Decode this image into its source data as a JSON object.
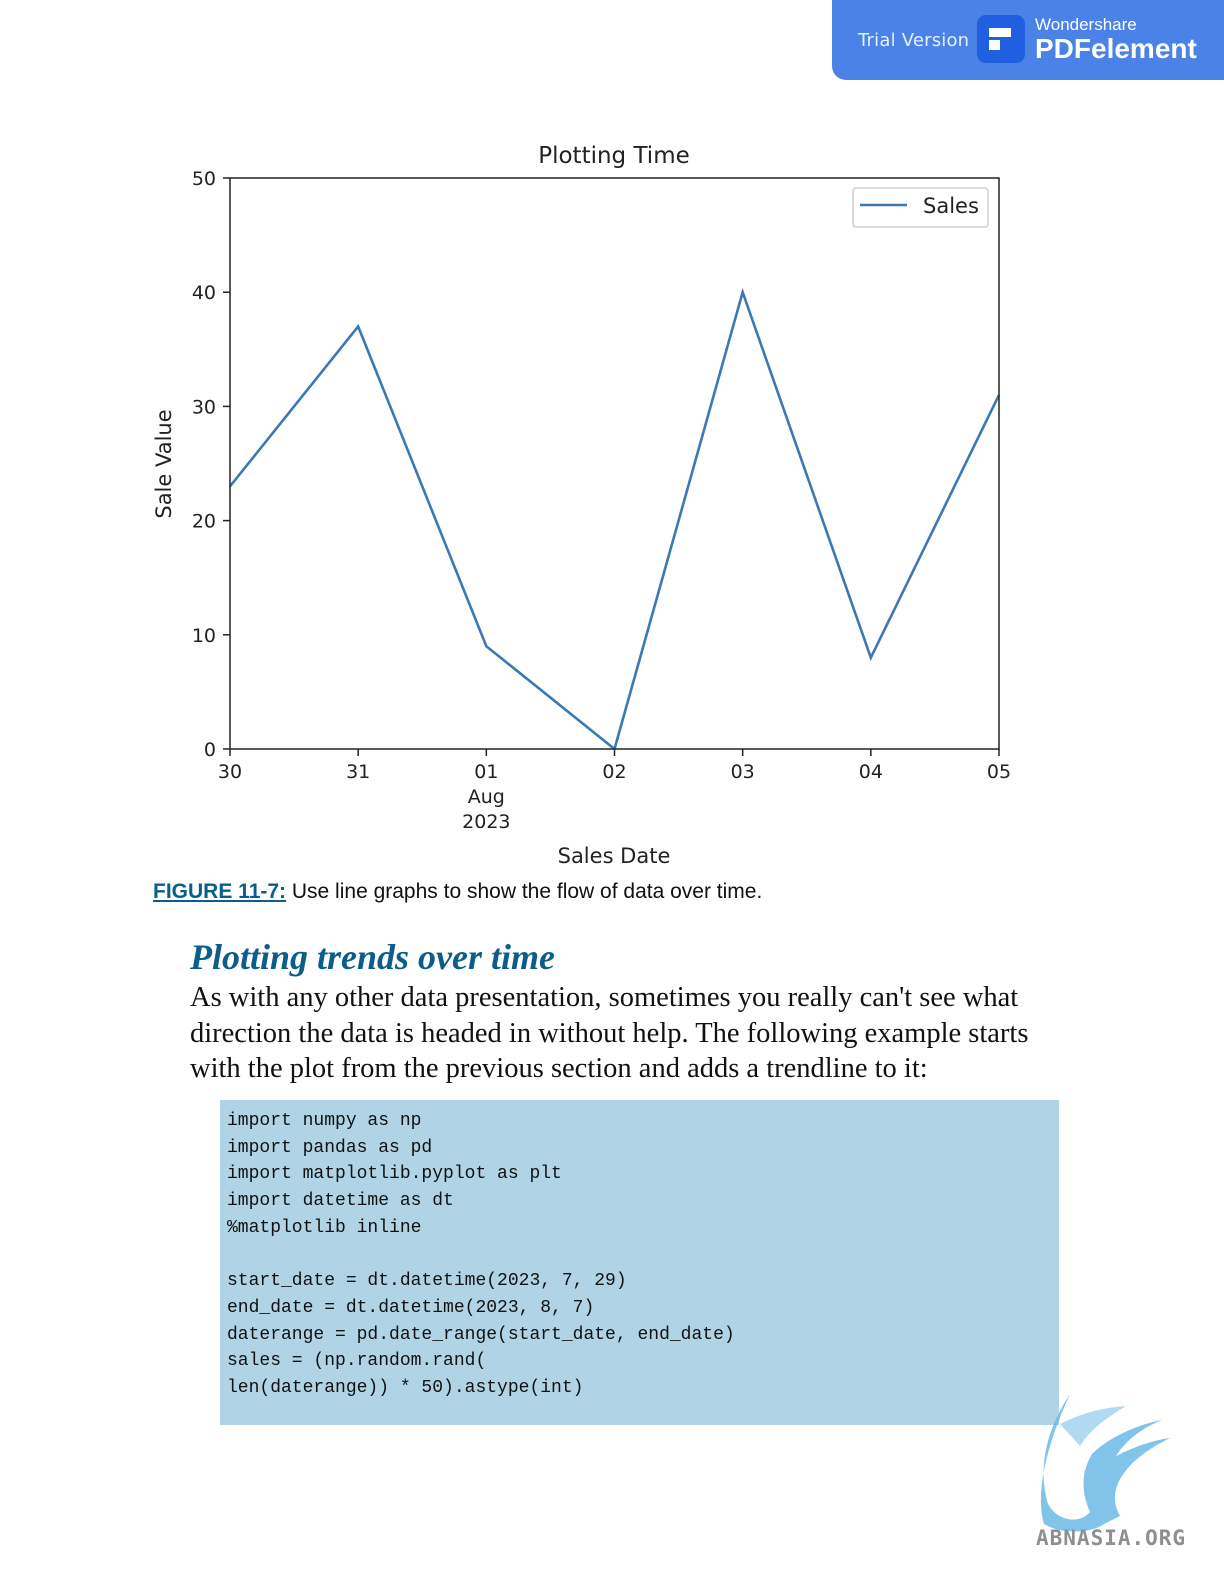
{
  "banner": {
    "trial_label": "Trial Version",
    "brand_small": "Wondershare",
    "brand_big": "PDFelement",
    "color": "#4a82e8",
    "logo_icon": "pdfelement-logo-icon"
  },
  "chart_data": {
    "type": "line",
    "title": "Plotting Time",
    "xlabel": "Sales Date",
    "ylabel": "Sale Value",
    "ylim": [
      0,
      50
    ],
    "yticks": [
      0,
      10,
      20,
      30,
      40,
      50
    ],
    "x": [
      "2023-07-30",
      "2023-07-31",
      "2023-08-01",
      "2023-08-02",
      "2023-08-03",
      "2023-08-04",
      "2023-08-05"
    ],
    "xtick_labels": [
      {
        "lines": [
          "30"
        ]
      },
      {
        "lines": [
          "31"
        ]
      },
      {
        "lines": [
          "01",
          "Aug",
          "2023"
        ]
      },
      {
        "lines": [
          "02"
        ]
      },
      {
        "lines": [
          "03"
        ]
      },
      {
        "lines": [
          "04"
        ]
      },
      {
        "lines": [
          "05"
        ]
      }
    ],
    "series": [
      {
        "name": "Sales",
        "values": [
          23,
          37,
          9,
          0,
          40,
          8,
          31
        ],
        "color": "#3c78b4"
      }
    ],
    "legend": "top-right",
    "grid": false
  },
  "caption": {
    "figure_label": "FIGURE 11-7:",
    "text": " Use line graphs to show the flow of data over time."
  },
  "section": {
    "heading": "Plotting trends over time",
    "body": "As with any other data presentation, sometimes you really can't see what direction the data is headed in without help. The following example starts with the plot from the previous section and adds a trendline to it:"
  },
  "code": {
    "lines": [
      "import numpy as np",
      "import pandas as pd",
      "import matplotlib.pyplot as plt",
      "import datetime as dt",
      "%matplotlib inline",
      "",
      "start_date = dt.datetime(2023, 7, 29)",
      "end_date = dt.datetime(2023, 8, 7)",
      "daterange = pd.date_range(start_date, end_date)",
      "sales = (np.random.rand(",
      "len(daterange)) * 50).astype(int)"
    ],
    "background": "#b0d4e6"
  },
  "watermark": {
    "text": "ABNASIA.ORG",
    "icon": "griffin-logo-icon"
  }
}
